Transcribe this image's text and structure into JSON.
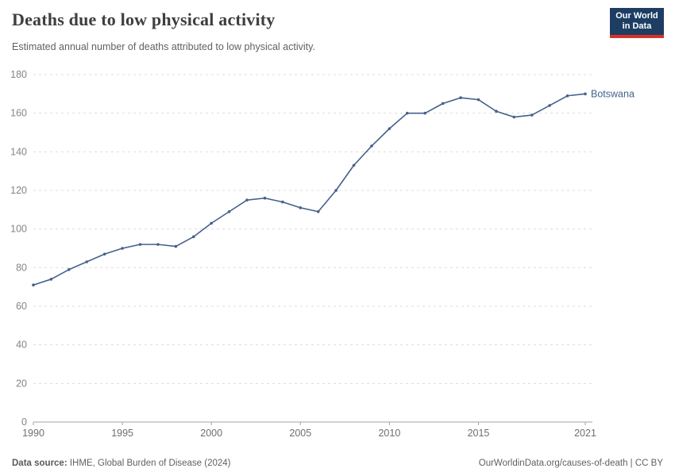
{
  "header": {
    "title": "Deaths due to low physical activity",
    "subtitle": "Estimated annual number of deaths attributed to low physical activity.",
    "logo": {
      "line1": "Our World",
      "line2": "in Data"
    }
  },
  "footer": {
    "source_label": "Data source:",
    "source_text": " IHME, Global Burden of Disease (2024)",
    "rights": "OurWorldinData.org/causes-of-death | CC BY"
  },
  "chart_data": {
    "type": "line",
    "title": "Deaths due to low physical activity",
    "subtitle": "Estimated annual number of deaths attributed to low physical activity.",
    "xlabel": "",
    "ylabel": "",
    "xlim": [
      1990,
      2021
    ],
    "ylim": [
      0,
      180
    ],
    "grid": "horizontal-dashed",
    "legend_position": "end-of-line",
    "x_ticks": [
      1990,
      1995,
      2000,
      2005,
      2010,
      2015,
      2021
    ],
    "y_ticks": [
      0,
      20,
      40,
      60,
      80,
      100,
      120,
      140,
      160,
      180
    ],
    "x": [
      1990,
      1991,
      1992,
      1993,
      1994,
      1995,
      1996,
      1997,
      1998,
      1999,
      2000,
      2001,
      2002,
      2003,
      2004,
      2005,
      2006,
      2007,
      2008,
      2009,
      2010,
      2011,
      2012,
      2013,
      2014,
      2015,
      2016,
      2017,
      2018,
      2019,
      2020,
      2021
    ],
    "series": [
      {
        "name": "Botswana",
        "color": "#44618c",
        "values": [
          71,
          74,
          79,
          83,
          87,
          90,
          92,
          92,
          91,
          96,
          103,
          109,
          115,
          116,
          114,
          111,
          109,
          120,
          133,
          143,
          152,
          160,
          160,
          165,
          168,
          167,
          161,
          158,
          159,
          164,
          169,
          170
        ]
      }
    ]
  }
}
